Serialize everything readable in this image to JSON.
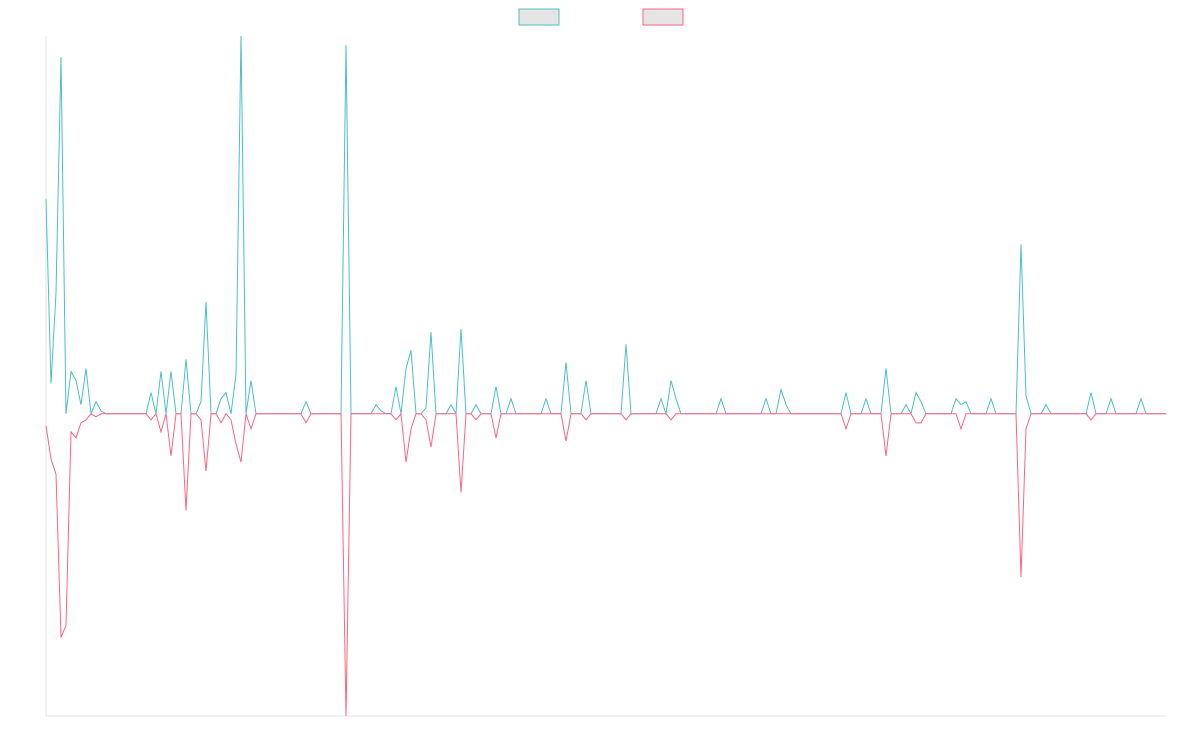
{
  "chart_data": {
    "type": "line",
    "ylim": [
      -100,
      125
    ],
    "series": [
      {
        "color": "#4bc0c0",
        "values": [
          71,
          10,
          40,
          118,
          0,
          14,
          11,
          3,
          15,
          0,
          4,
          1,
          0,
          0,
          0,
          0,
          0,
          0,
          0,
          0,
          0,
          7,
          0,
          14,
          0,
          14,
          0,
          0,
          18,
          0,
          0,
          4,
          37,
          0,
          0,
          5,
          7,
          0,
          13,
          125,
          0,
          11,
          0,
          0,
          0,
          0,
          0,
          0,
          0,
          0,
          0,
          0,
          4,
          0,
          0,
          0,
          0,
          0,
          0,
          0,
          122,
          0,
          0,
          0,
          0,
          0,
          3,
          1,
          0,
          0,
          9,
          0,
          15,
          21,
          0,
          0,
          2,
          27,
          0,
          0,
          0,
          3,
          0,
          28,
          0,
          0,
          3,
          0,
          0,
          0,
          9,
          0,
          0,
          5,
          0,
          0,
          0,
          0,
          0,
          0,
          5,
          0,
          0,
          0,
          17,
          0,
          0,
          0,
          11,
          0,
          0,
          0,
          0,
          0,
          0,
          0,
          23,
          0,
          0,
          0,
          0,
          0,
          0,
          5,
          0,
          11,
          5,
          0,
          0,
          0,
          0,
          0,
          0,
          0,
          0,
          5,
          0,
          0,
          0,
          0,
          0,
          0,
          0,
          0,
          5,
          0,
          0,
          8,
          3,
          0,
          0,
          0,
          0,
          0,
          0,
          0,
          0,
          0,
          0,
          0,
          7,
          0,
          0,
          0,
          5,
          0,
          0,
          0,
          15,
          0,
          0,
          0,
          3,
          0,
          7,
          4,
          0,
          0,
          0,
          0,
          0,
          0,
          5,
          3,
          4,
          0,
          0,
          0,
          0,
          5,
          0,
          0,
          0,
          0,
          0,
          56,
          6,
          0,
          0,
          0,
          3,
          0,
          0,
          0,
          0,
          0,
          0,
          0,
          0,
          7,
          0,
          0,
          0,
          5,
          0,
          0,
          0,
          0,
          0,
          5,
          0,
          0,
          0,
          0,
          0
        ]
      },
      {
        "color": "#ff6384",
        "values": [
          -4,
          -15,
          -20,
          -74,
          -70,
          -6,
          -8,
          -3,
          -2,
          0,
          -1,
          0,
          0,
          0,
          0,
          0,
          0,
          0,
          0,
          0,
          0,
          -2,
          0,
          -6,
          0,
          -14,
          0,
          0,
          -32,
          0,
          0,
          -2,
          -19,
          0,
          0,
          -3,
          0,
          -2,
          -10,
          -16,
          0,
          -5,
          0,
          0,
          0,
          0,
          0,
          0,
          0,
          0,
          0,
          0,
          -3,
          0,
          0,
          0,
          0,
          0,
          0,
          0,
          -100,
          0,
          0,
          0,
          0,
          0,
          0,
          0,
          0,
          0,
          -2,
          0,
          -16,
          -5,
          0,
          0,
          -2,
          -11,
          0,
          0,
          0,
          0,
          0,
          -26,
          0,
          0,
          -2,
          0,
          0,
          0,
          -8,
          0,
          0,
          0,
          0,
          0,
          0,
          0,
          0,
          0,
          0,
          0,
          0,
          0,
          -9,
          0,
          0,
          0,
          -2,
          0,
          0,
          0,
          0,
          0,
          0,
          0,
          -2,
          0,
          0,
          0,
          0,
          0,
          0,
          0,
          0,
          -2,
          0,
          0,
          0,
          0,
          0,
          0,
          0,
          0,
          0,
          0,
          0,
          0,
          0,
          0,
          0,
          0,
          0,
          0,
          0,
          0,
          0,
          0,
          0,
          0,
          0,
          0,
          0,
          0,
          0,
          0,
          0,
          0,
          0,
          0,
          -5,
          0,
          0,
          0,
          0,
          0,
          0,
          0,
          -14,
          0,
          0,
          0,
          0,
          0,
          -3,
          -3,
          0,
          0,
          0,
          0,
          0,
          0,
          0,
          -5,
          0,
          0,
          0,
          0,
          0,
          0,
          0,
          0,
          0,
          0,
          0,
          -54,
          -5,
          0,
          0,
          0,
          0,
          0,
          0,
          0,
          0,
          0,
          0,
          0,
          0,
          -2,
          0,
          0,
          0,
          0,
          0,
          0,
          0,
          0,
          0,
          0,
          0,
          0,
          0,
          0,
          0
        ]
      }
    ]
  }
}
